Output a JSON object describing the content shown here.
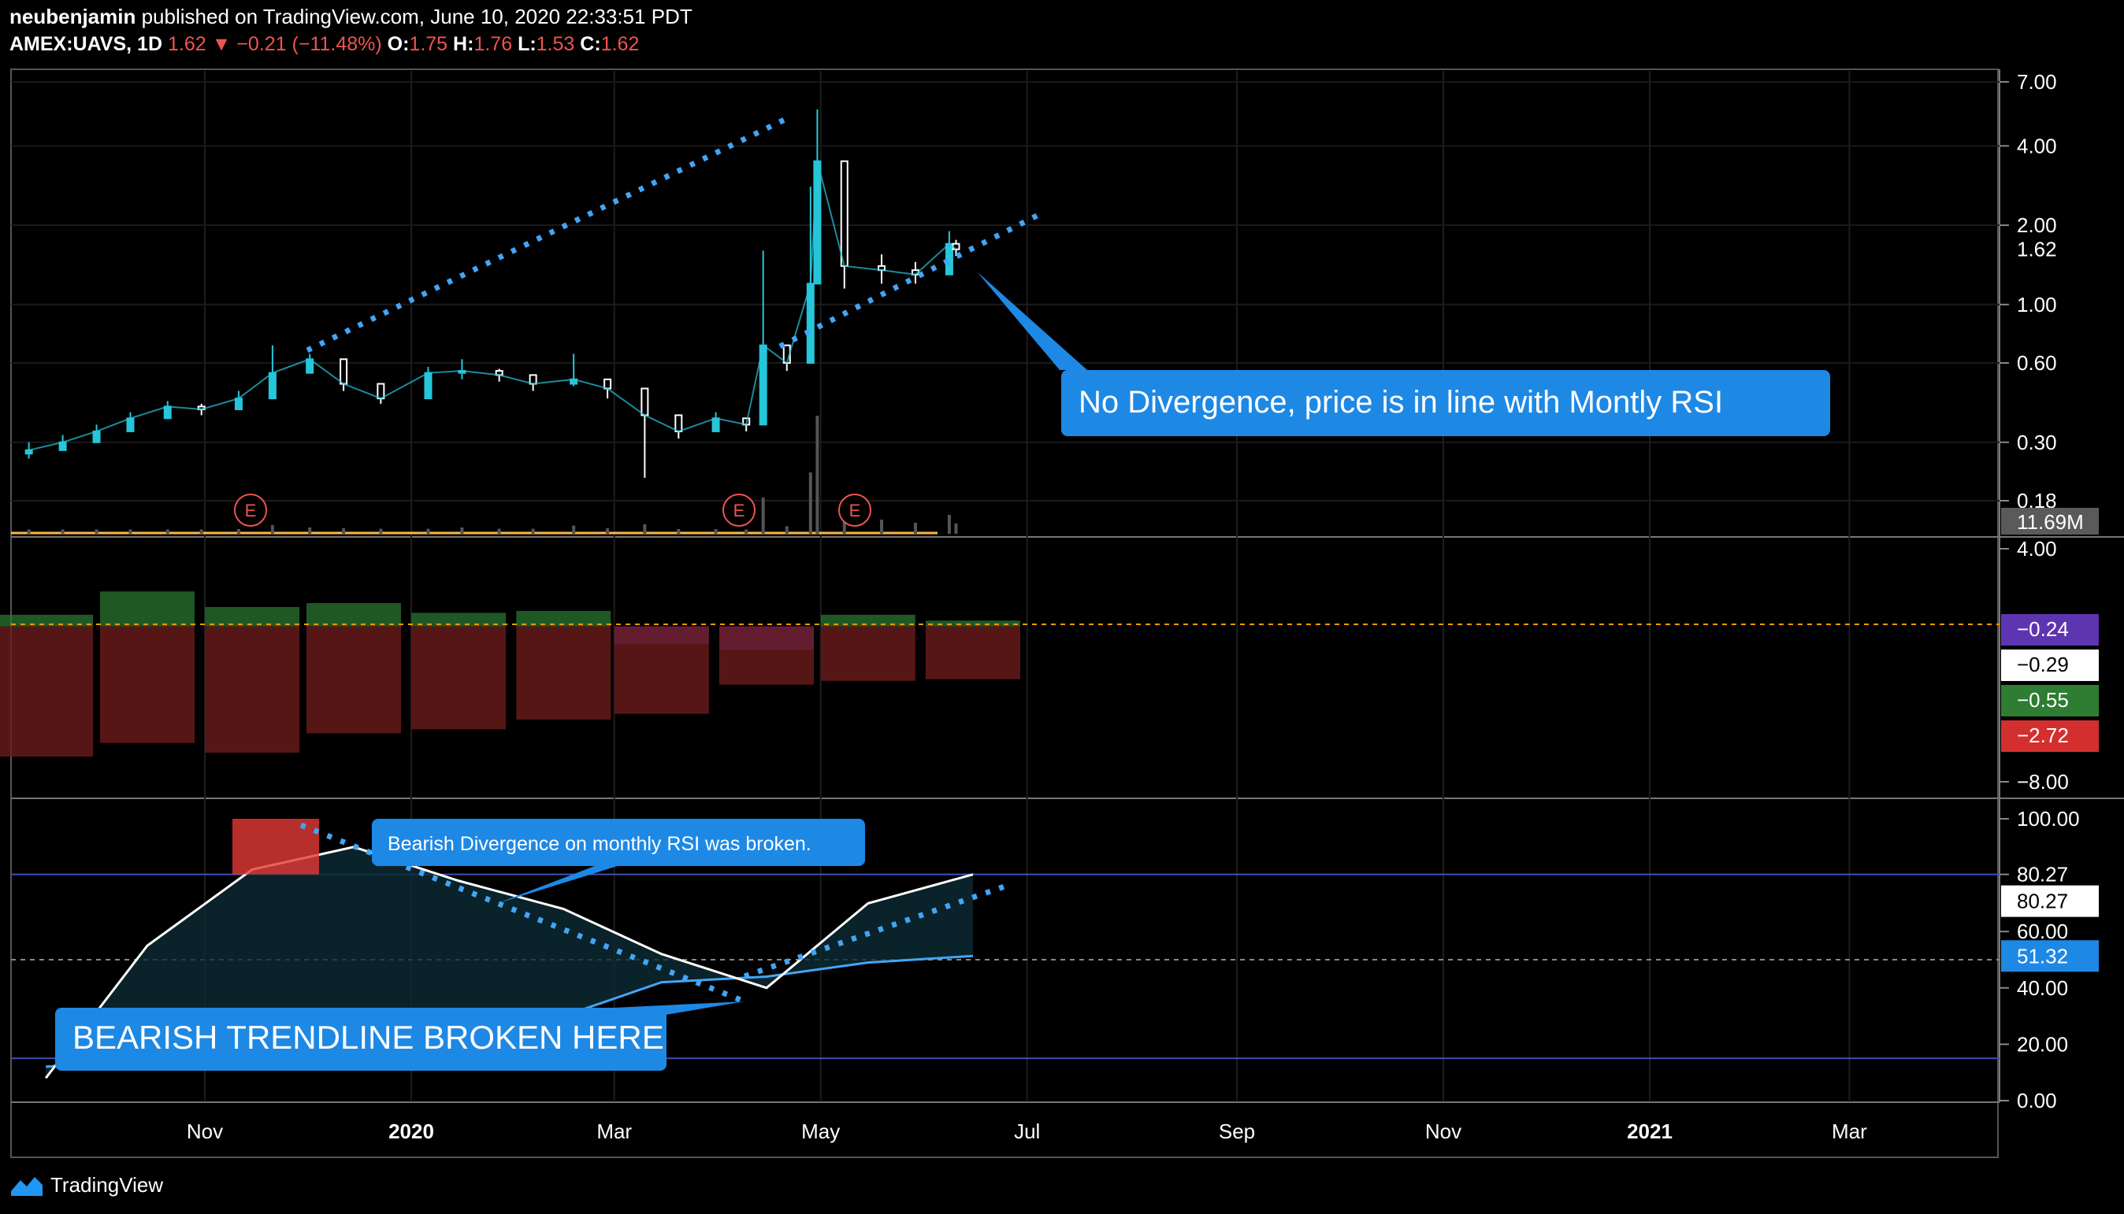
{
  "header": {
    "author": "neubenjamin",
    "published": "published on TradingView.com, June 10, 2020 22:33:51 PDT",
    "symbol": "AMEX:UAVS, 1D",
    "last": "1.62",
    "change": "−0.21 (−11.48%)",
    "o_label": "O:",
    "o": "1.75",
    "h_label": "H:",
    "h": "1.76",
    "l_label": "L:",
    "l": "1.53",
    "c_label": "C:",
    "c": "1.62"
  },
  "brand": "TradingView",
  "colors": {
    "background": "#000000",
    "candle_up": "#26c6da",
    "candle_down": "#ffffff",
    "trendline": "#42a5f5",
    "callout": "#1e88e5",
    "rsi_line": "#ffffff",
    "rsi_ma": "#42a5f5",
    "rsi_overbought": "#e53935"
  },
  "x_axis": {
    "labels": [
      "Nov",
      "2020",
      "Mar",
      "May",
      "Jul",
      "Sep",
      "Nov",
      "2021",
      "Mar"
    ]
  },
  "price_axis": {
    "labels": [
      "7.00",
      "4.00",
      "2.00",
      "1.00",
      "0.60",
      "0.30",
      "0.18"
    ],
    "current": "1.62",
    "volume": "11.69M"
  },
  "macd_axis": {
    "labels": [
      "4.00",
      "−8.00"
    ],
    "badges": [
      "−0.24",
      "−0.29",
      "−0.55",
      "−2.72"
    ]
  },
  "rsi_axis": {
    "labels": [
      "100.00",
      "80.27",
      "60.00",
      "40.00",
      "20.00",
      "0.00"
    ],
    "badge_white": "80.27",
    "badge_blue": "51.32"
  },
  "earnings_markers": [
    "E",
    "E",
    "E"
  ],
  "annotations": {
    "price_callout": "No Divergence, price is in line with Montly RSI",
    "rsi_callout": "Bearish Divergence on monthly RSI was broken.",
    "trend_callout": "BEARISH TRENDLINE BROKEN HERE"
  },
  "chart_data": [
    {
      "type": "candlestick",
      "panel": "price",
      "y_scale": "log",
      "ylim": [
        0.18,
        7.0
      ],
      "x": [
        "2019-09-10",
        "2019-09-20",
        "2019-09-30",
        "2019-10-10",
        "2019-10-21",
        "2019-10-31",
        "2019-11-11",
        "2019-11-21",
        "2019-12-02",
        "2019-12-12",
        "2019-12-23",
        "2020-01-06",
        "2020-01-16",
        "2020-01-27",
        "2020-02-06",
        "2020-02-18",
        "2020-02-28",
        "2020-03-10",
        "2020-03-20",
        "2020-03-31",
        "2020-04-09",
        "2020-04-14",
        "2020-04-21",
        "2020-04-28",
        "2020-04-30",
        "2020-05-08",
        "2020-05-19",
        "2020-05-29",
        "2020-06-08",
        "2020-06-10"
      ],
      "close": [
        0.28,
        0.3,
        0.33,
        0.37,
        0.41,
        0.4,
        0.44,
        0.55,
        0.62,
        0.5,
        0.44,
        0.55,
        0.56,
        0.54,
        0.5,
        0.52,
        0.48,
        0.38,
        0.33,
        0.37,
        0.35,
        0.7,
        0.6,
        1.2,
        3.5,
        1.4,
        1.35,
        1.3,
        1.7,
        1.62
      ],
      "high": [
        0.3,
        0.32,
        0.35,
        0.39,
        0.43,
        0.42,
        0.47,
        0.7,
        0.65,
        0.55,
        0.48,
        0.58,
        0.62,
        0.57,
        0.53,
        0.65,
        0.52,
        0.42,
        0.36,
        0.39,
        0.37,
        1.6,
        0.7,
        2.8,
        5.5,
        1.8,
        1.55,
        1.45,
        1.9,
        1.76
      ],
      "low": [
        0.26,
        0.28,
        0.31,
        0.35,
        0.39,
        0.38,
        0.42,
        0.52,
        0.55,
        0.47,
        0.42,
        0.52,
        0.52,
        0.51,
        0.47,
        0.49,
        0.44,
        0.22,
        0.31,
        0.34,
        0.33,
        0.55,
        0.56,
        0.95,
        1.4,
        1.15,
        1.2,
        1.2,
        1.4,
        1.53
      ]
    },
    {
      "type": "histogram",
      "panel": "macd",
      "ylim": [
        -8.0,
        4.0
      ],
      "values_note": "",
      "x": [
        "2019-09",
        "2019-10",
        "2019-11",
        "2019-12",
        "2020-01",
        "2020-02",
        "2020-03",
        "2020-04",
        "2020-05",
        "2020-06"
      ],
      "series": [
        {
          "values": [
            0.6,
            1.8,
            1.0,
            1.2,
            0.7,
            0.8,
            -0.9,
            -1.2,
            0.6,
            0.3
          ]
        },
        {
          "values": [
            -6.7,
            -6.0,
            -6.5,
            -5.5,
            -5.3,
            -4.8,
            -4.5,
            -3.0,
            -2.8,
            -2.72
          ]
        }
      ]
    },
    {
      "type": "line",
      "panel": "rsi",
      "ylim": [
        0,
        100
      ],
      "x": [
        "2019-09",
        "2019-10",
        "2019-11",
        "2019-12",
        "2020-01",
        "2020-02",
        "2020-03",
        "2020-04",
        "2020-05",
        "2020-06"
      ],
      "series": [
        {
          "values": [
            8,
            55,
            82,
            90,
            78,
            68,
            52,
            40,
            70,
            80.27
          ]
        },
        {
          "values": [
            12,
            15,
            18,
            25,
            30,
            30,
            42,
            44,
            49,
            51.32
          ]
        }
      ]
    }
  ]
}
